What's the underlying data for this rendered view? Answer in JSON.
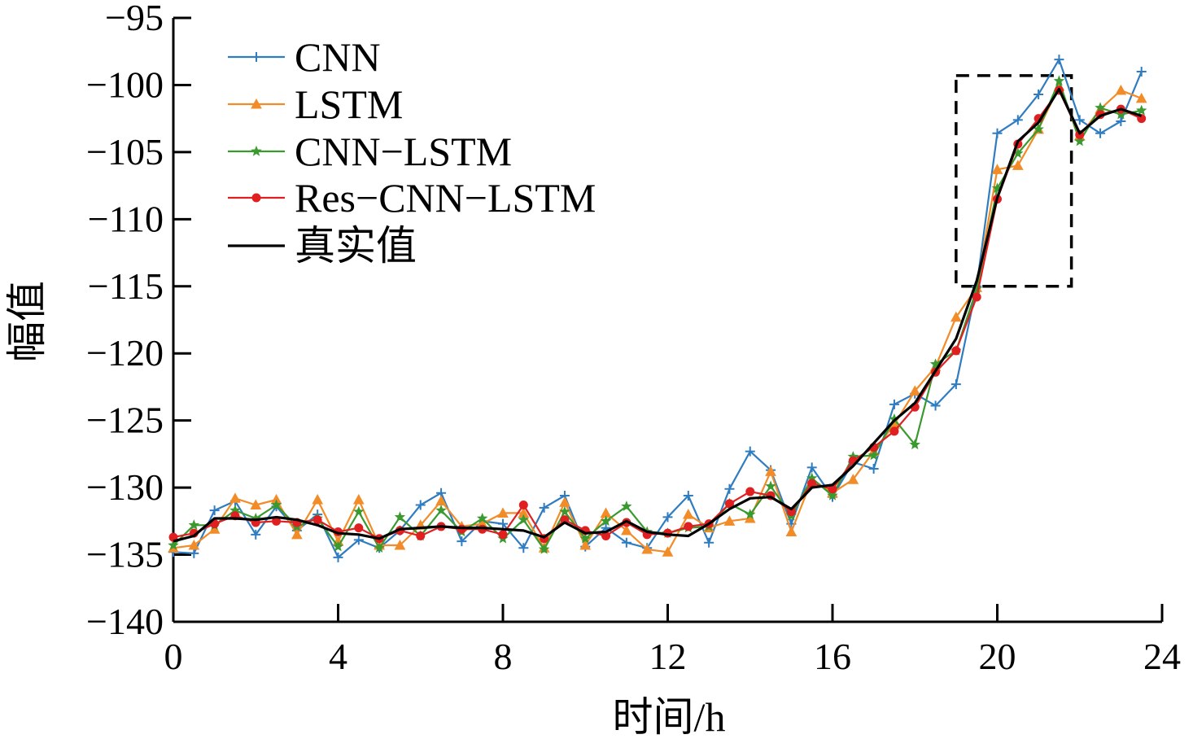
{
  "chart_data": {
    "type": "line",
    "title": "",
    "xlabel": "时间/h",
    "ylabel": "幅值",
    "xlim": [
      0,
      24
    ],
    "ylim": [
      -140,
      -95
    ],
    "xticks": [
      0,
      4,
      8,
      12,
      16,
      20,
      24
    ],
    "yticks": [
      -95,
      -100,
      -105,
      -110,
      -115,
      -120,
      -125,
      -130,
      -135,
      -140
    ],
    "grid": false,
    "legend_position": "top-left",
    "highlight_box": {
      "x": [
        19,
        21.8
      ],
      "y": [
        -115,
        -99.3
      ],
      "style": "dashed"
    },
    "x": [
      0,
      0.5,
      1,
      1.5,
      2,
      2.5,
      3,
      3.5,
      4,
      4.5,
      5,
      5.5,
      6,
      6.5,
      7,
      7.5,
      8,
      8.5,
      9,
      9.5,
      10,
      10.5,
      11,
      11.5,
      12,
      12.5,
      13,
      13.5,
      14,
      14.5,
      15,
      15.5,
      16,
      16.5,
      17,
      17.5,
      18,
      18.5,
      19,
      19.5,
      20,
      20.5,
      21,
      21.5,
      22,
      22.5,
      23,
      23.5
    ],
    "series": [
      {
        "name": "CNN",
        "color": "#2f7cc0",
        "marker": "plus",
        "values": [
          -134.8,
          -134.9,
          -131.7,
          -131.0,
          -133.5,
          -131.4,
          -133.2,
          -132.0,
          -135.2,
          -133.9,
          -134.5,
          -133.2,
          -131.3,
          -130.4,
          -134.0,
          -132.5,
          -132.7,
          -134.5,
          -131.5,
          -130.6,
          -134.4,
          -133.0,
          -134.1,
          -134.5,
          -132.2,
          -130.6,
          -134.1,
          -130.1,
          -127.3,
          -128.7,
          -132.7,
          -128.5,
          -130.7,
          -128.1,
          -128.6,
          -123.8,
          -123.0,
          -123.9,
          -122.3,
          -115.0,
          -103.6,
          -102.6,
          -100.7,
          -98.1,
          -102.6,
          -103.6,
          -102.7,
          -99.0
        ]
      },
      {
        "name": "LSTM",
        "color": "#f28c28",
        "marker": "triangle",
        "values": [
          -134.5,
          -134.3,
          -133.1,
          -130.8,
          -131.3,
          -130.9,
          -133.5,
          -130.9,
          -134.0,
          -130.9,
          -134.3,
          -134.3,
          -132.8,
          -131.0,
          -132.9,
          -132.7,
          -131.9,
          -131.9,
          -134.5,
          -131.1,
          -134.3,
          -131.9,
          -133.2,
          -134.6,
          -134.8,
          -132.0,
          -133.0,
          -132.5,
          -132.3,
          -128.8,
          -133.3,
          -129.4,
          -130.4,
          -129.4,
          -127.3,
          -125.3,
          -122.8,
          -121.0,
          -117.3,
          -115.1,
          -106.3,
          -106.0,
          -103.3,
          -100.1,
          -103.8,
          -101.8,
          -100.4,
          -101.0
        ]
      },
      {
        "name": "CNN-LSTM",
        "color": "#3a9a2f",
        "marker": "star",
        "values": [
          -134.3,
          -132.8,
          -132.8,
          -131.7,
          -132.3,
          -131.3,
          -132.9,
          -132.3,
          -134.4,
          -131.8,
          -134.5,
          -132.2,
          -133.6,
          -131.7,
          -133.3,
          -132.3,
          -133.8,
          -132.4,
          -134.6,
          -131.8,
          -133.8,
          -132.5,
          -131.4,
          -133.3,
          -133.4,
          -133.0,
          -132.9,
          -131.2,
          -132.0,
          -129.9,
          -132.1,
          -129.3,
          -130.6,
          -127.7,
          -127.6,
          -124.9,
          -126.8,
          -120.8,
          -119.8,
          -115.2,
          -107.7,
          -105.1,
          -103.3,
          -99.7,
          -104.2,
          -101.7,
          -102.2,
          -101.9
        ]
      },
      {
        "name": "Res-CNN-LSTM",
        "color": "#e02020",
        "marker": "circle",
        "values": [
          -133.7,
          -133.4,
          -132.7,
          -132.1,
          -132.6,
          -132.5,
          -132.6,
          -132.4,
          -133.3,
          -133.0,
          -133.8,
          -133.2,
          -133.6,
          -132.9,
          -133.1,
          -133.1,
          -133.5,
          -131.3,
          -133.8,
          -132.4,
          -133.2,
          -133.6,
          -132.6,
          -133.5,
          -133.4,
          -132.9,
          -132.7,
          -131.2,
          -130.3,
          -130.6,
          -131.8,
          -129.7,
          -130.1,
          -128.0,
          -127.0,
          -125.8,
          -124.0,
          -121.4,
          -119.8,
          -115.8,
          -108.5,
          -104.4,
          -102.5,
          -100.4,
          -103.7,
          -102.2,
          -101.8,
          -102.5
        ]
      },
      {
        "name": "真实值",
        "color": "#000000",
        "marker": "none",
        "values": [
          -134.0,
          -133.6,
          -132.3,
          -132.3,
          -132.4,
          -132.2,
          -132.4,
          -132.8,
          -133.4,
          -133.5,
          -133.8,
          -133.1,
          -133.0,
          -132.9,
          -133.0,
          -133.0,
          -133.1,
          -133.2,
          -133.7,
          -132.6,
          -133.4,
          -133.3,
          -132.5,
          -133.3,
          -133.5,
          -133.6,
          -132.7,
          -131.6,
          -130.8,
          -130.7,
          -131.6,
          -130.0,
          -129.8,
          -128.4,
          -126.7,
          -125.0,
          -123.7,
          -121.3,
          -118.9,
          -114.6,
          -108.4,
          -104.2,
          -102.8,
          -100.3,
          -103.6,
          -102.3,
          -101.8,
          -102.3
        ]
      }
    ]
  }
}
